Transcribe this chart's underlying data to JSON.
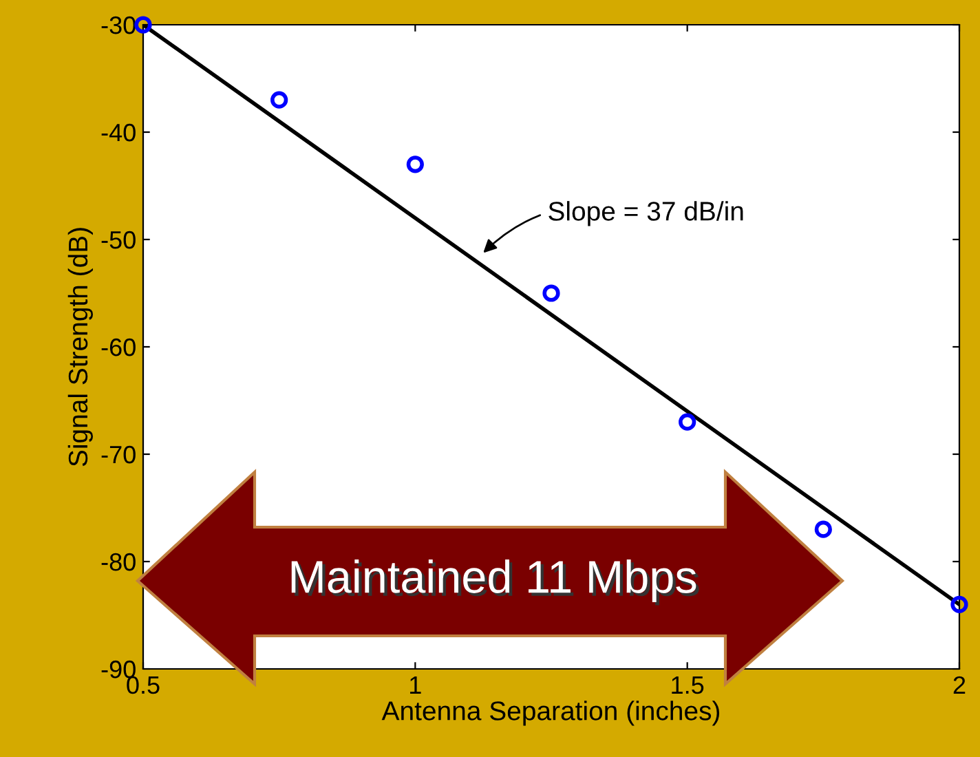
{
  "chart_data": {
    "type": "scatter",
    "xlabel": "Antenna Separation (inches)",
    "ylabel": "Signal Strength (dB)",
    "series": [
      {
        "color": "#0000ff",
        "marker": "circle",
        "x": [
          0.5,
          0.75,
          1,
          1.25,
          1.5,
          1.75,
          2
        ],
        "values": [
          -30,
          -37,
          -43,
          -55,
          -67,
          -77,
          -84
        ]
      },
      {
        "type": "line",
        "color": "#000000",
        "marker": "none",
        "line_style": "solid",
        "x": [
          0.5,
          2
        ],
        "values": [
          -30,
          -84
        ]
      }
    ],
    "xlim": [
      0.5,
      2
    ],
    "xticks": [
      0.5,
      1,
      1.5,
      2
    ],
    "ylim": [
      -90,
      -30
    ],
    "yticks": [
      -90,
      -80,
      -70,
      -60,
      -50,
      -40,
      -30
    ],
    "grid": false,
    "annotations": [
      {
        "text": "Slope = 37 dB/in",
        "x": 1.12,
        "y": -51.5
      },
      "Maintained 11 Mbps"
    ]
  }
}
